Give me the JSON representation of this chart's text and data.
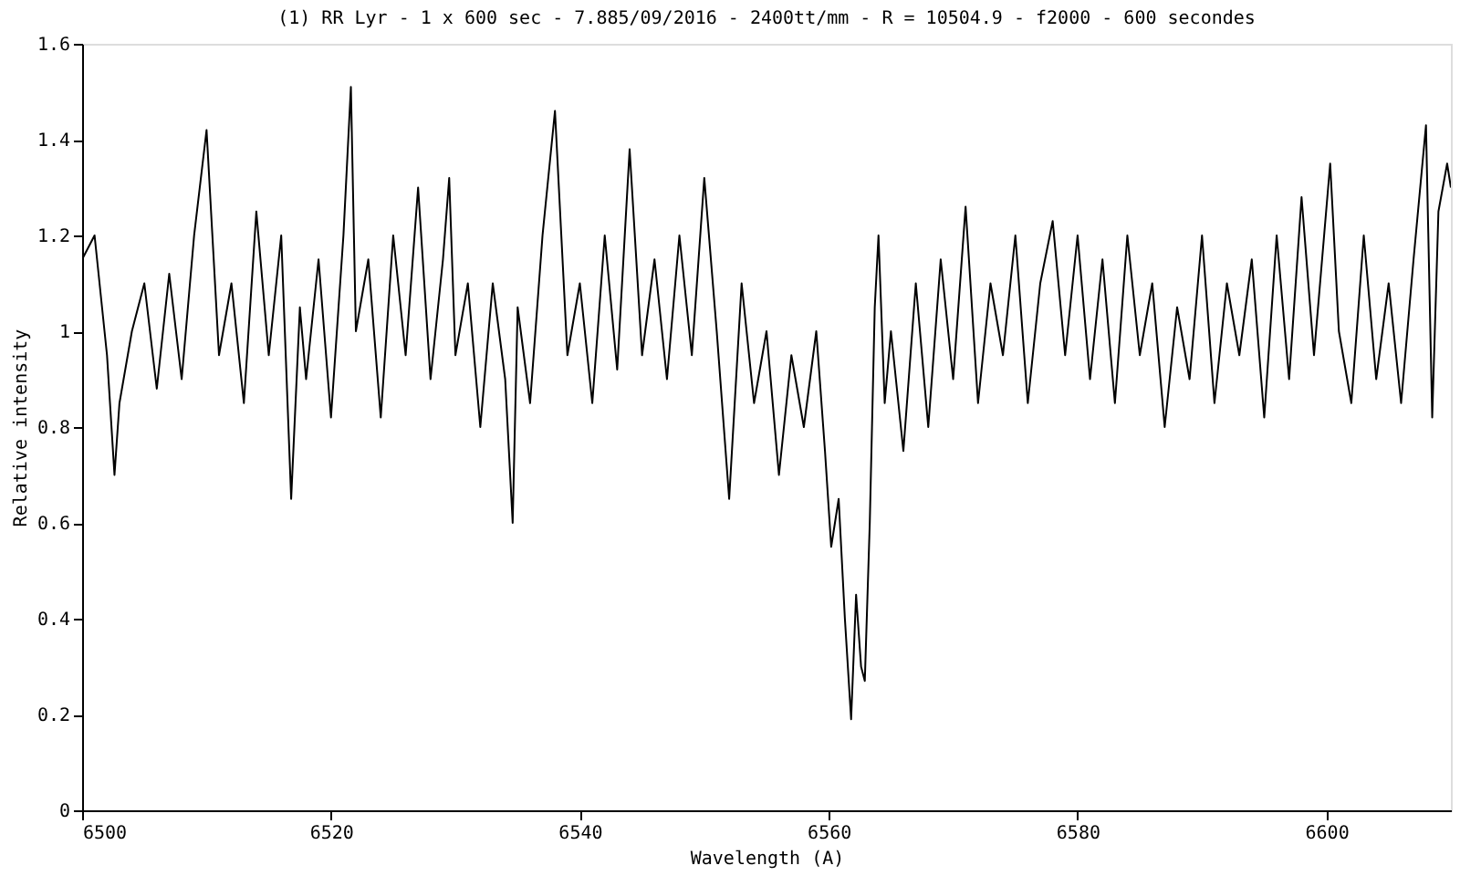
{
  "chart_data": {
    "type": "line",
    "title": "(1) RR Lyr - 1 x 600 sec - 7.885/09/2016 - 2400tt/mm - R = 10504.9 - f2000 - 600 secondes",
    "xlabel": "Wavelength (A)",
    "ylabel": "Relative intensity",
    "xlim": [
      6500,
      6610
    ],
    "xticks": [
      6500,
      6520,
      6540,
      6560,
      6580,
      6600
    ],
    "ylim": [
      0,
      1.6
    ],
    "yticks": [
      0,
      0.2,
      0.4,
      0.6,
      0.8,
      1,
      1.2,
      1.4,
      1.6
    ],
    "grid": false,
    "marker": "none",
    "line_style": "solid",
    "series": [
      {
        "color": "#000000",
        "x": [
          6500,
          6501,
          6502,
          6502.6,
          6503,
          6504,
          6505,
          6506,
          6507,
          6508,
          6509,
          6510,
          6511,
          6512,
          6513,
          6514,
          6515,
          6516,
          6516.8,
          6517.5,
          6518,
          6519,
          6520,
          6521,
          6521.6,
          6522,
          6523,
          6524,
          6525,
          6526,
          6527,
          6528,
          6529,
          6529.5,
          6530,
          6531,
          6532,
          6533,
          6534,
          6534.6,
          6535,
          6536,
          6537,
          6538,
          6539,
          6540,
          6541,
          6542,
          6543,
          6544,
          6545,
          6546,
          6547,
          6548,
          6549,
          6550,
          6551,
          6552,
          6553,
          6554,
          6555,
          6556,
          6557,
          6558,
          6559,
          6559.7,
          6560.2,
          6560.8,
          6561.3,
          6561.8,
          6562.2,
          6562.6,
          6562.9,
          6563.3,
          6563.7,
          6564,
          6564.5,
          6565,
          6566,
          6567,
          6568,
          6569,
          6570,
          6571,
          6572,
          6573,
          6574,
          6575,
          6576,
          6577,
          6578,
          6579,
          6580,
          6581,
          6582,
          6583,
          6584,
          6585,
          6586,
          6587,
          6588,
          6589,
          6590,
          6591,
          6592,
          6593,
          6594,
          6595,
          6596,
          6597,
          6598,
          6599,
          6600.3,
          6601,
          6602,
          6603,
          6604,
          6605,
          6606,
          6607,
          6608,
          6608.5,
          6609,
          6609.7,
          6610
        ],
        "values": [
          1.15,
          1.2,
          0.95,
          0.7,
          0.85,
          1.0,
          1.1,
          0.88,
          1.12,
          0.9,
          1.2,
          1.42,
          0.95,
          1.1,
          0.85,
          1.25,
          0.95,
          1.2,
          0.65,
          1.05,
          0.9,
          1.15,
          0.82,
          1.2,
          1.51,
          1.0,
          1.15,
          0.82,
          1.2,
          0.95,
          1.3,
          0.9,
          1.15,
          1.32,
          0.95,
          1.1,
          0.8,
          1.1,
          0.9,
          0.6,
          1.05,
          0.85,
          1.2,
          1.46,
          0.95,
          1.1,
          0.85,
          1.2,
          0.92,
          1.38,
          0.95,
          1.15,
          0.9,
          1.2,
          0.95,
          1.32,
          1.0,
          0.65,
          1.1,
          0.85,
          1.0,
          0.7,
          0.95,
          0.8,
          1.0,
          0.75,
          0.55,
          0.65,
          0.4,
          0.19,
          0.45,
          0.3,
          0.27,
          0.6,
          1.05,
          1.2,
          0.85,
          1.0,
          0.75,
          1.1,
          0.8,
          1.15,
          0.9,
          1.26,
          0.85,
          1.1,
          0.95,
          1.2,
          0.85,
          1.1,
          1.23,
          0.95,
          1.2,
          0.9,
          1.15,
          0.85,
          1.2,
          0.95,
          1.1,
          0.8,
          1.05,
          0.9,
          1.2,
          0.85,
          1.1,
          0.95,
          1.15,
          0.82,
          1.2,
          0.9,
          1.28,
          0.95,
          1.35,
          1.0,
          0.85,
          1.2,
          0.9,
          1.1,
          0.85,
          1.15,
          1.43,
          0.82,
          1.25,
          1.35,
          1.3
        ]
      }
    ]
  }
}
